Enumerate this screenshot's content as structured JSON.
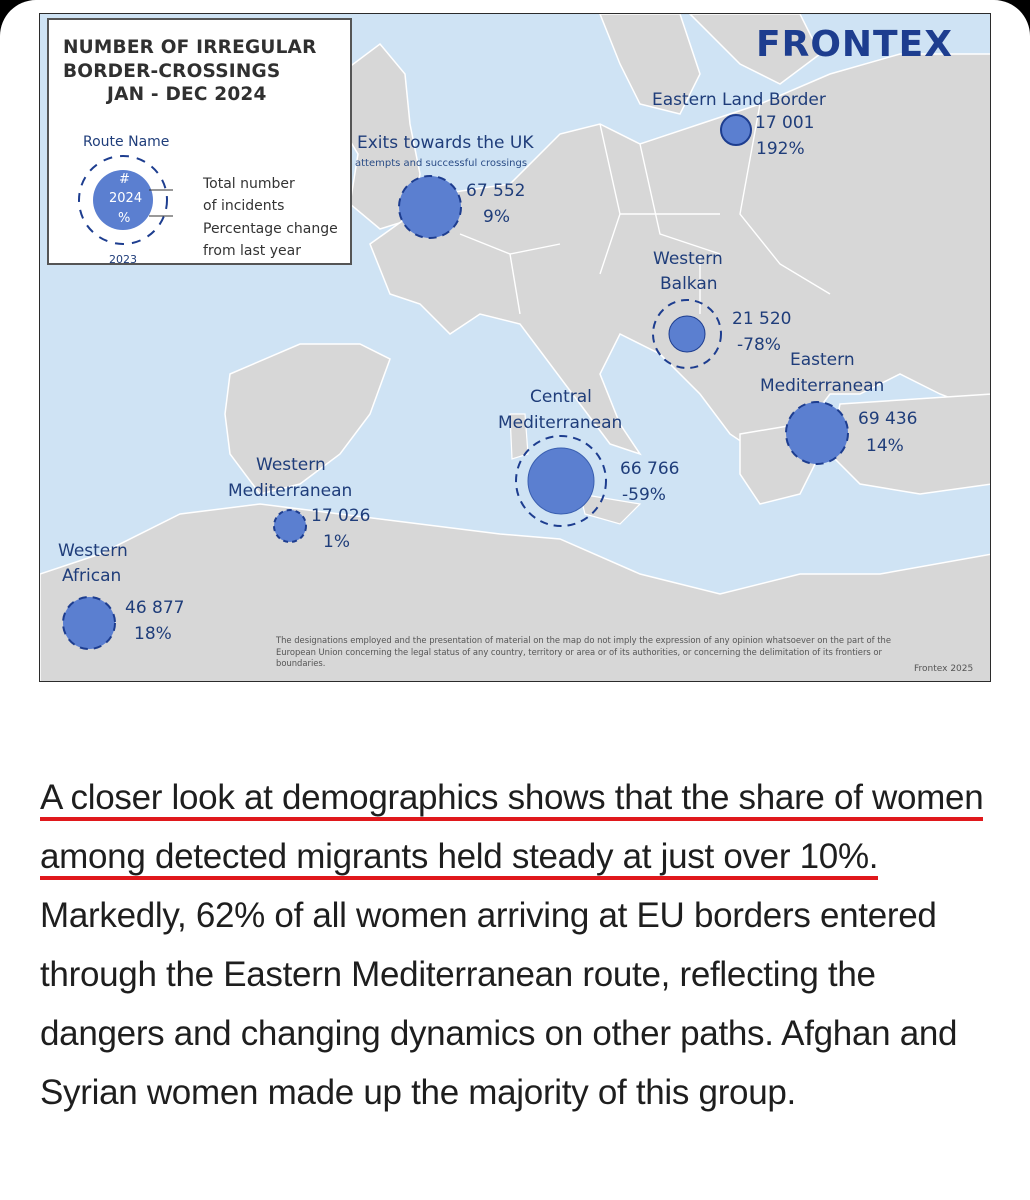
{
  "legend": {
    "title_lines": [
      "NUMBER OF IRREGULAR",
      "BORDER-CROSSINGS",
      "JAN - DEC 2024"
    ],
    "route_name": "Route Name",
    "hash": "#",
    "current_year": "2024",
    "percent_symbol": "%",
    "previous_year": "2023",
    "total_label_line1": "Total number",
    "total_label_line2": "of incidents",
    "change_label_line1": "Percentage change",
    "change_label_line2": "from last year"
  },
  "brand": "FRONTEX",
  "routes": [
    {
      "name": "Eastern Land Border",
      "value": "17 001",
      "change": "192%"
    },
    {
      "name": "Exits towards the UK",
      "subtitle": "attempts and successful crossings",
      "value": "67 552",
      "change": "9%"
    },
    {
      "name_lines": [
        "Western",
        "Balkan"
      ],
      "value": "21 520",
      "change": "-78%"
    },
    {
      "name_lines": [
        "Eastern",
        "Mediterranean"
      ],
      "value": "69 436",
      "change": "14%"
    },
    {
      "name_lines": [
        "Central",
        "Mediterranean"
      ],
      "value": "66 766",
      "change": "-59%"
    },
    {
      "name_lines": [
        "Western",
        "Mediterranean"
      ],
      "value": "17 026",
      "change": "1%"
    },
    {
      "name_lines": [
        "Western",
        "African"
      ],
      "value": "46 877",
      "change": "18%"
    }
  ],
  "disclaimer": "The designations employed and the presentation of material on the map do not imply the expression of any opinion whatsoever on the part of the European Union concerning the legal status of any country, territory or area or of its authorities, or concerning the delimitation of its frontiers or boundaries.",
  "credit": "Frontex 2025",
  "article": {
    "highlighted": "A closer look at demographics shows that the share of women among detected migrants held steady at just over 10%.",
    "rest": "Markedly, 62% of all women arriving at EU borders entered through the Eastern Mediterranean route, reflecting the dangers and changing dynamics on other paths. Afghan and Syrian women made up the majority of this group."
  },
  "colors": {
    "sea": "#cfe3f4",
    "land": "#d7d7d7",
    "border": "#ffffff",
    "circle_fill": "#5b7fd0",
    "circle_stroke": "#1d3d8f",
    "underline": "#e0181c"
  }
}
